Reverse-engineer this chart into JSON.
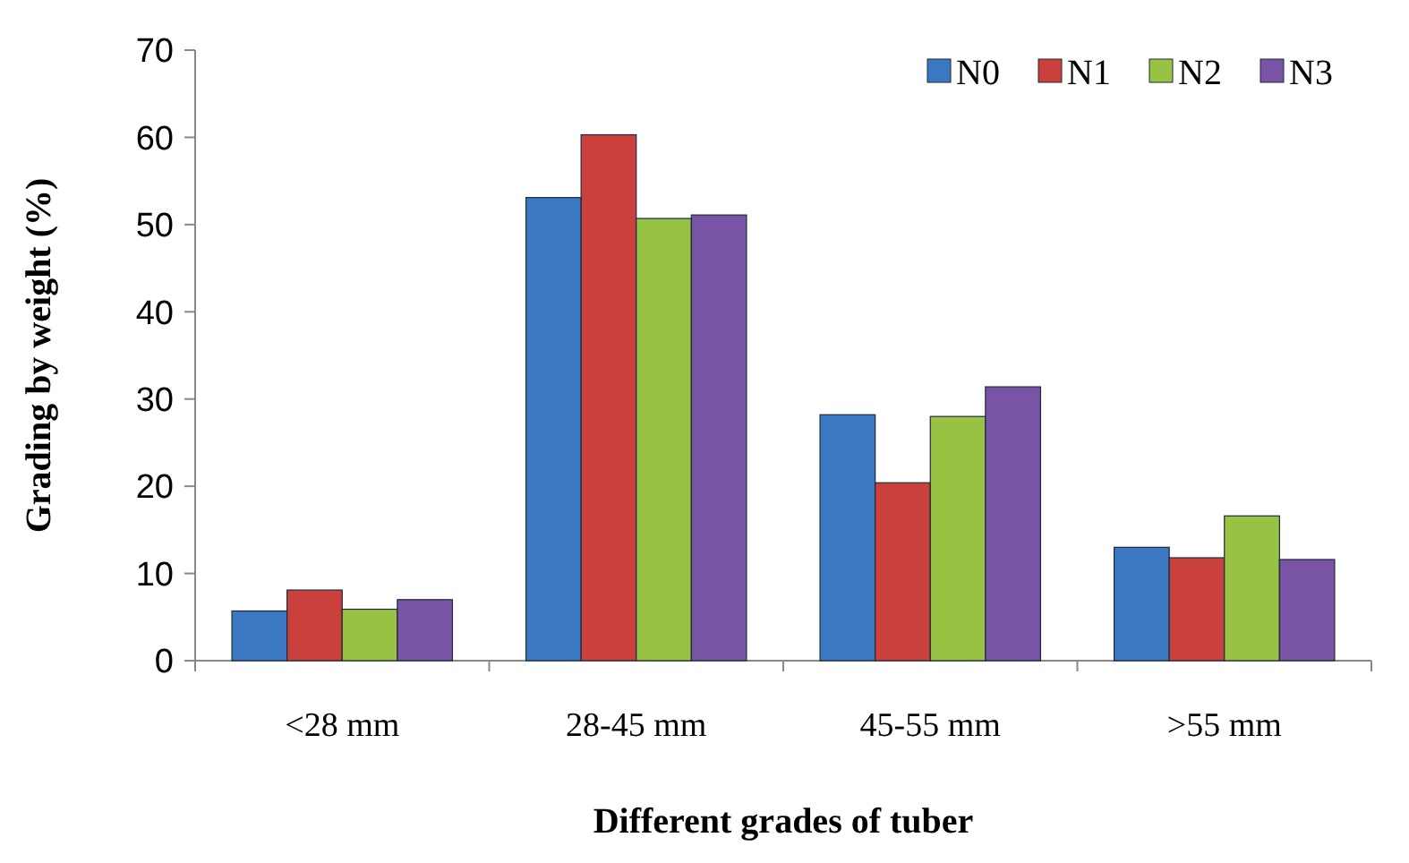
{
  "chart_data": {
    "type": "bar",
    "xlabel": "Different grades of tuber",
    "ylabel": "Grading by weight (%)",
    "categories": [
      "<28 mm",
      "28-45 mm",
      "45-55 mm",
      ">55 mm"
    ],
    "series": [
      {
        "name": "N0",
        "color": "#3a78c2",
        "values": [
          5.7,
          53.1,
          28.2,
          13.0
        ]
      },
      {
        "name": "N1",
        "color": "#c9403c",
        "values": [
          8.1,
          60.3,
          20.4,
          11.8
        ]
      },
      {
        "name": "N2",
        "color": "#98c244",
        "values": [
          5.9,
          50.7,
          28.0,
          16.6
        ]
      },
      {
        "name": "N3",
        "color": "#7953a4",
        "values": [
          7.0,
          51.1,
          31.4,
          11.6
        ]
      }
    ],
    "ylim": [
      0,
      70
    ],
    "yticks": [
      0,
      10,
      20,
      30,
      40,
      50,
      60,
      70
    ],
    "grid": false,
    "legend": "top right"
  }
}
